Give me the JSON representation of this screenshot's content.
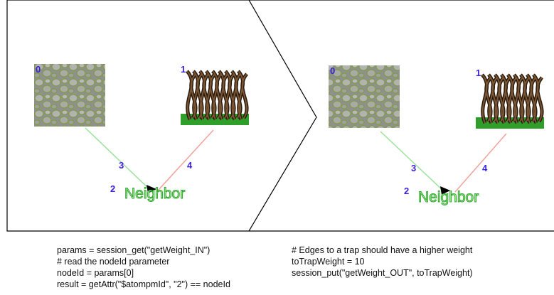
{
  "panels": [
    {
      "nodes": [
        {
          "label": "0"
        },
        {
          "label": "1"
        }
      ],
      "edges": [
        {
          "label": "3"
        },
        {
          "label": "4"
        }
      ],
      "center": {
        "label": "2",
        "text": "Neighbor"
      }
    },
    {
      "nodes": [
        {
          "label": "0"
        },
        {
          "label": "1"
        }
      ],
      "edges": [
        {
          "label": "3"
        },
        {
          "label": "4"
        }
      ],
      "center": {
        "label": "2",
        "text": "Neighbor"
      }
    }
  ],
  "code": {
    "left": [
      "params = session_get(\"getWeight_IN\")",
      "# read the nodeId parameter",
      "nodeId = params[0]",
      "result = getAttr(\"$atompmId\", \"2\") == nodeId"
    ],
    "right": [
      "# Edges to a trap should have a higher weight",
      "toTrapWeight = 10",
      "session_put(\"getWeight_OUT\", toTrapWeight)"
    ]
  }
}
